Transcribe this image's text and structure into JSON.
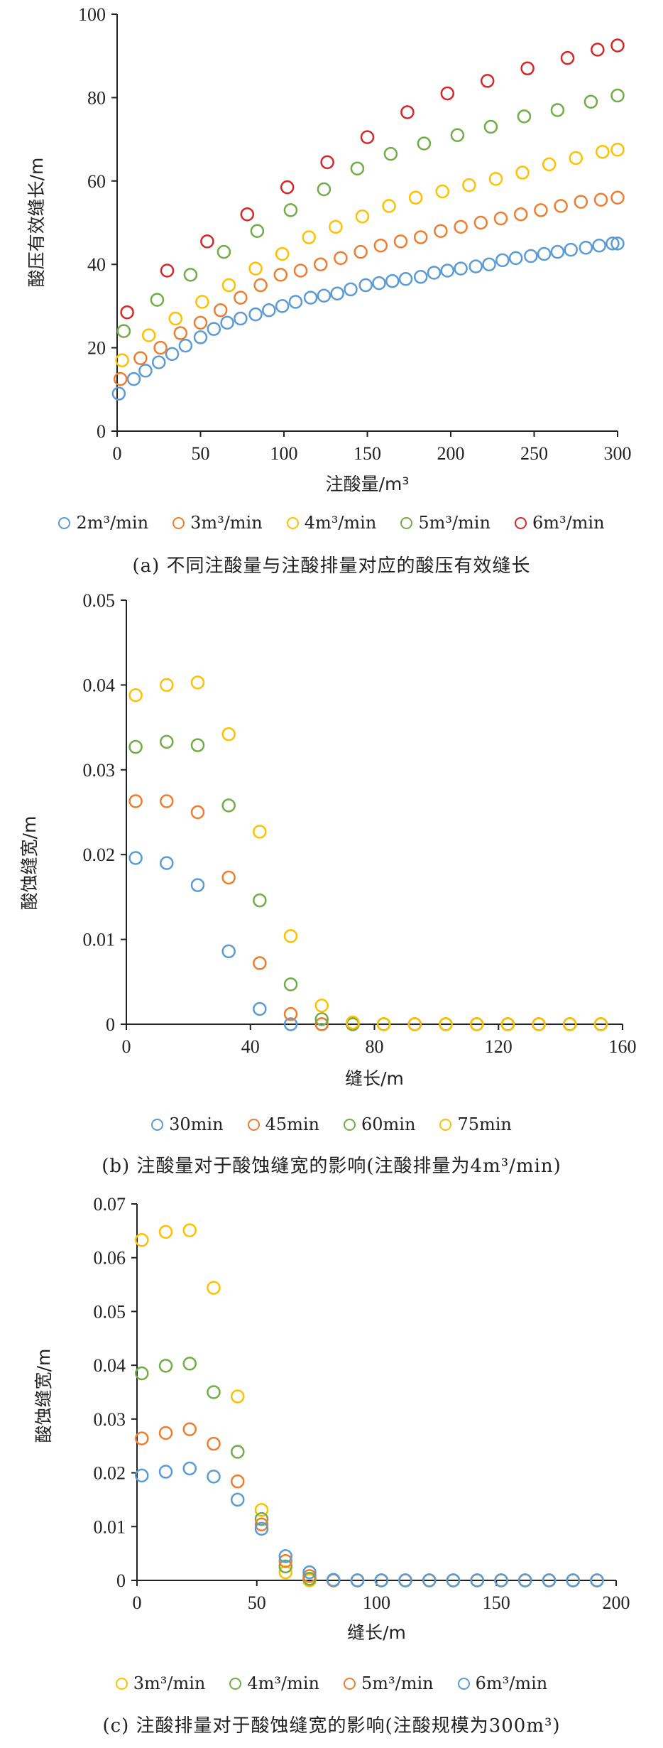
{
  "chart_data": [
    {
      "type": "scatter",
      "xlabel": "注酸量/m³",
      "ylabel": "酸压有效缝长/m",
      "xlim": [
        0,
        300
      ],
      "ylim": [
        0,
        100
      ],
      "xticks": [
        "0",
        "50",
        "100",
        "150",
        "200",
        "250",
        "300"
      ],
      "yticks": [
        "0",
        "20",
        "40",
        "60",
        "80",
        "100"
      ],
      "legend_position": "bottom",
      "caption": "(a) 不同注酸量与注酸排量对应的酸压有效缝长",
      "series": [
        {
          "name": "2m³/min",
          "color": "#5b9bd5",
          "x": [
            1,
            10,
            17,
            25,
            33,
            41,
            50,
            58,
            66,
            74,
            83,
            91,
            99,
            107,
            116,
            124,
            132,
            140,
            149,
            157,
            165,
            173,
            182,
            190,
            198,
            206,
            215,
            223,
            231,
            239,
            248,
            256,
            264,
            272,
            281,
            289,
            297,
            300
          ],
          "y": [
            9,
            12.5,
            14.5,
            16.5,
            18.5,
            20.5,
            22.5,
            24.5,
            26,
            27,
            28,
            29,
            30,
            31,
            32,
            32.5,
            33,
            34,
            35,
            35.5,
            36,
            36.5,
            37,
            38,
            38.5,
            39,
            39.5,
            40,
            41,
            41.5,
            42,
            42.5,
            43,
            43.5,
            44,
            44.5,
            45,
            45
          ]
        },
        {
          "name": "3m³/min",
          "color": "#ed7d31",
          "x": [
            2,
            14,
            26,
            38,
            50,
            62,
            74,
            86,
            98,
            110,
            122,
            134,
            146,
            158,
            170,
            182,
            194,
            206,
            218,
            230,
            242,
            254,
            266,
            278,
            290,
            300
          ],
          "y": [
            12.5,
            17.5,
            20,
            23.5,
            26,
            29,
            32,
            35,
            37.5,
            38.5,
            40,
            41.5,
            43,
            44.5,
            45.5,
            46.5,
            48,
            49,
            50,
            51,
            52,
            53,
            54,
            55,
            55.5,
            56
          ]
        },
        {
          "name": "4m³/min",
          "color": "#ffc000",
          "x": [
            3,
            19,
            35,
            51,
            67,
            83,
            99,
            115,
            131,
            147,
            163,
            179,
            195,
            211,
            227,
            243,
            259,
            275,
            291,
            300
          ],
          "y": [
            17,
            23,
            27,
            31,
            35,
            39,
            42.5,
            46.5,
            49,
            51.5,
            54,
            56,
            57.5,
            59,
            60.5,
            62,
            64,
            65.5,
            67,
            67.5
          ]
        },
        {
          "name": "5m³/min",
          "color": "#70ad47",
          "x": [
            4,
            24,
            44,
            64,
            84,
            104,
            124,
            144,
            164,
            184,
            204,
            224,
            244,
            264,
            284,
            300
          ],
          "y": [
            24,
            31.5,
            37.5,
            43,
            48,
            53,
            58,
            63,
            66.5,
            69,
            71,
            73,
            75.5,
            77,
            79,
            80.5
          ]
        },
        {
          "name": "6m³/min",
          "color": "#d62728",
          "x": [
            6,
            30,
            54,
            78,
            102,
            126,
            150,
            174,
            198,
            222,
            246,
            270,
            288,
            300
          ],
          "y": [
            28.5,
            38.5,
            45.5,
            52,
            58.5,
            64.5,
            70.5,
            76.5,
            81,
            84,
            87,
            89.5,
            91.5,
            92.5
          ]
        }
      ]
    },
    {
      "type": "scatter",
      "xlabel": "缝长/m",
      "ylabel": "酸蚀缝宽/m",
      "xlim": [
        0,
        160
      ],
      "ylim": [
        0,
        0.05
      ],
      "xticks": [
        "0",
        "40",
        "80",
        "120",
        "160"
      ],
      "yticks": [
        "0",
        "0.01",
        "0.02",
        "0.03",
        "0.04",
        "0.05"
      ],
      "legend_position": "bottom",
      "caption": "(b) 注酸量对于酸蚀缝宽的影响(注酸排量为4m³/min)",
      "series": [
        {
          "name": "30min",
          "color": "#5b9bd5",
          "x": [
            3,
            13,
            23,
            33,
            43,
            53,
            63,
            73,
            83,
            93,
            103,
            113,
            123,
            133,
            143,
            153
          ],
          "y": [
            0.0196,
            0.019,
            0.0164,
            0.0086,
            0.0018,
            0,
            0,
            0,
            0,
            0,
            0,
            0,
            0,
            0,
            0,
            0
          ]
        },
        {
          "name": "45min",
          "color": "#ed7d31",
          "x": [
            3,
            13,
            23,
            33,
            43,
            53,
            63,
            73,
            83,
            93,
            103,
            113,
            123,
            133,
            143,
            153
          ],
          "y": [
            0.0263,
            0.0263,
            0.025,
            0.0173,
            0.0072,
            0.0012,
            0,
            0,
            0,
            0,
            0,
            0,
            0,
            0,
            0,
            0
          ]
        },
        {
          "name": "60min",
          "color": "#70ad47",
          "x": [
            3,
            13,
            23,
            33,
            43,
            53,
            63,
            73,
            83,
            93,
            103,
            113,
            123,
            133,
            143,
            153
          ],
          "y": [
            0.0327,
            0.0333,
            0.0329,
            0.0258,
            0.0146,
            0.0047,
            0.0006,
            0,
            0,
            0,
            0,
            0,
            0,
            0,
            0,
            0
          ]
        },
        {
          "name": "75min",
          "color": "#ffc000",
          "x": [
            3,
            13,
            23,
            33,
            43,
            53,
            63,
            73,
            83,
            93,
            103,
            113,
            123,
            133,
            143,
            153
          ],
          "y": [
            0.0388,
            0.04,
            0.0403,
            0.0342,
            0.0227,
            0.0104,
            0.0022,
            0.0002,
            0,
            0,
            0,
            0,
            0,
            0,
            0,
            0
          ]
        }
      ]
    },
    {
      "type": "scatter",
      "xlabel": "缝长/m",
      "ylabel": "酸蚀缝宽/m",
      "xlim": [
        0,
        200
      ],
      "ylim": [
        0,
        0.07
      ],
      "xticks": [
        "0",
        "50",
        "100",
        "150",
        "200"
      ],
      "yticks": [
        "0",
        "0.01",
        "0.02",
        "0.03",
        "0.04",
        "0.05",
        "0.06",
        "0.07"
      ],
      "legend_position": "bottom",
      "caption": "(c) 注酸排量对于酸蚀缝宽的影响(注酸规模为300m³)",
      "series": [
        {
          "name": "3m³/min",
          "color": "#ffc000",
          "x": [
            2,
            12,
            22,
            32,
            42,
            52,
            62,
            72,
            82,
            92,
            102,
            112,
            122,
            132,
            142,
            152,
            162,
            172,
            182,
            192
          ],
          "y": [
            0.0633,
            0.0648,
            0.0651,
            0.0544,
            0.0342,
            0.0131,
            0.0015,
            0,
            0,
            0,
            0,
            0,
            0,
            0,
            0,
            0,
            0,
            0,
            0,
            0
          ]
        },
        {
          "name": "4m³/min",
          "color": "#70ad47",
          "x": [
            2,
            12,
            22,
            32,
            42,
            52,
            62,
            72,
            82,
            92,
            102,
            112,
            122,
            132,
            142,
            152,
            162,
            172,
            182,
            192
          ],
          "y": [
            0.0385,
            0.0399,
            0.0403,
            0.035,
            0.0239,
            0.0114,
            0.0026,
            0.0003,
            0,
            0,
            0,
            0,
            0,
            0,
            0,
            0,
            0,
            0,
            0,
            0
          ]
        },
        {
          "name": "5m³/min",
          "color": "#ed7d31",
          "x": [
            2,
            12,
            22,
            32,
            42,
            52,
            62,
            72,
            82,
            92,
            102,
            112,
            122,
            132,
            142,
            152,
            162,
            172,
            182,
            192
          ],
          "y": [
            0.0264,
            0.0274,
            0.0281,
            0.0254,
            0.0184,
            0.0104,
            0.0036,
            0.0008,
            0,
            0,
            0,
            0,
            0,
            0,
            0,
            0,
            0,
            0,
            0,
            0
          ]
        },
        {
          "name": "6m³/min",
          "color": "#5b9bd5",
          "x": [
            2,
            12,
            22,
            32,
            42,
            52,
            62,
            72,
            82,
            92,
            102,
            112,
            122,
            132,
            142,
            152,
            162,
            172,
            182,
            192
          ],
          "y": [
            0.0195,
            0.0202,
            0.0208,
            0.0193,
            0.015,
            0.0096,
            0.0045,
            0.0015,
            0.0001,
            0,
            0,
            0,
            0,
            0,
            0,
            0,
            0,
            0,
            0,
            0
          ]
        }
      ]
    }
  ]
}
